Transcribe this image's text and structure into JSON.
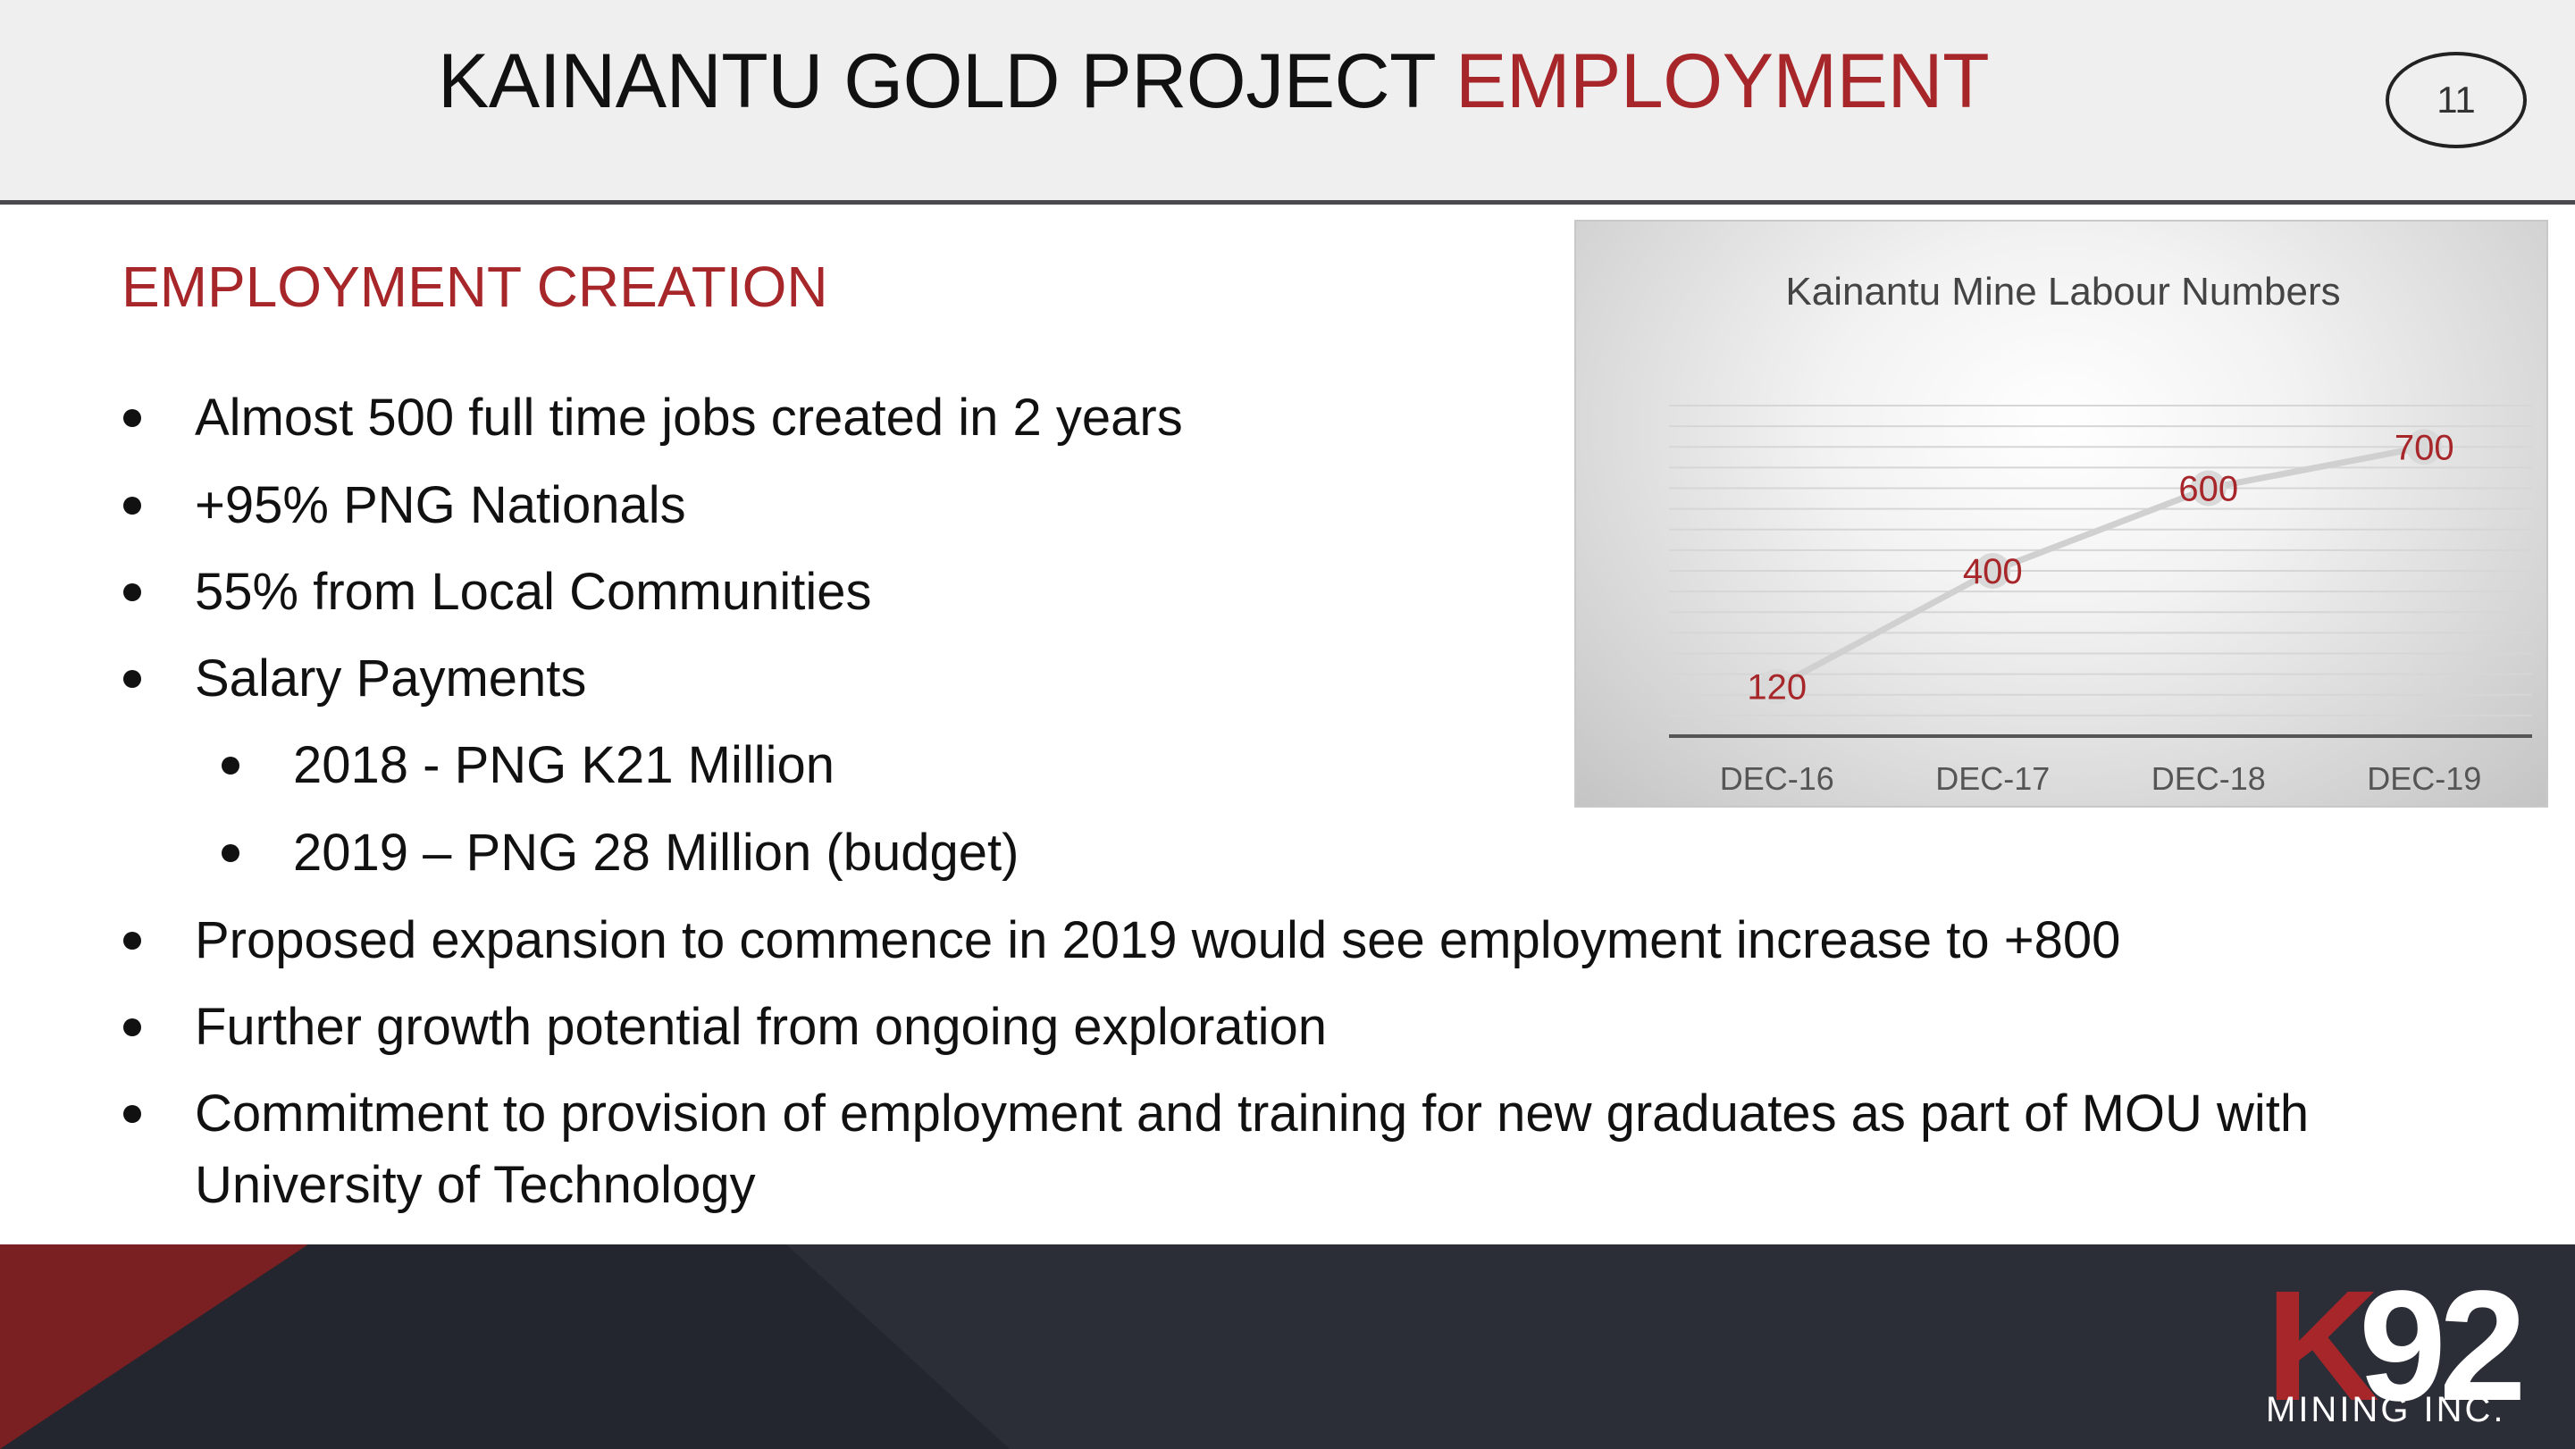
{
  "header": {
    "title_main": "KAINANTU GOLD PROJECT ",
    "title_accent": "EMPLOYMENT",
    "page_number": "11"
  },
  "content": {
    "heading": "EMPLOYMENT CREATION",
    "bullets": [
      "Almost 500 full time jobs created in 2 years",
      "+95% PNG Nationals",
      "55% from Local Communities",
      "Salary Payments",
      "2018 - PNG K21 Million",
      "2019 – PNG 28 Million (budget)",
      "Proposed expansion to commence in 2019 would see employment increase to +800",
      "Further growth potential from ongoing exploration",
      "Commitment to provision of employment and training for new graduates as part of MOU with",
      "University of Technology"
    ]
  },
  "chart_data": {
    "type": "line",
    "title": "Kainantu Mine Labour Numbers",
    "categories": [
      "DEC-16",
      "DEC-17",
      "DEC-18",
      "DEC-19"
    ],
    "series": [
      {
        "values": [
          120,
          400,
          600,
          700
        ],
        "labels": [
          "120",
          "400",
          "600",
          "700"
        ]
      }
    ],
    "ylim": [
      0,
      800
    ],
    "grid": true,
    "colors": {
      "line": "#d0d0d0",
      "label": "#a7262a",
      "axis": "#555555"
    }
  },
  "footer": {
    "logo_k": "K",
    "logo_num": "92",
    "logo_sub": "MINING INC.",
    "colors": {
      "background": "#2b2d37",
      "accent": "#7a1f22"
    }
  }
}
